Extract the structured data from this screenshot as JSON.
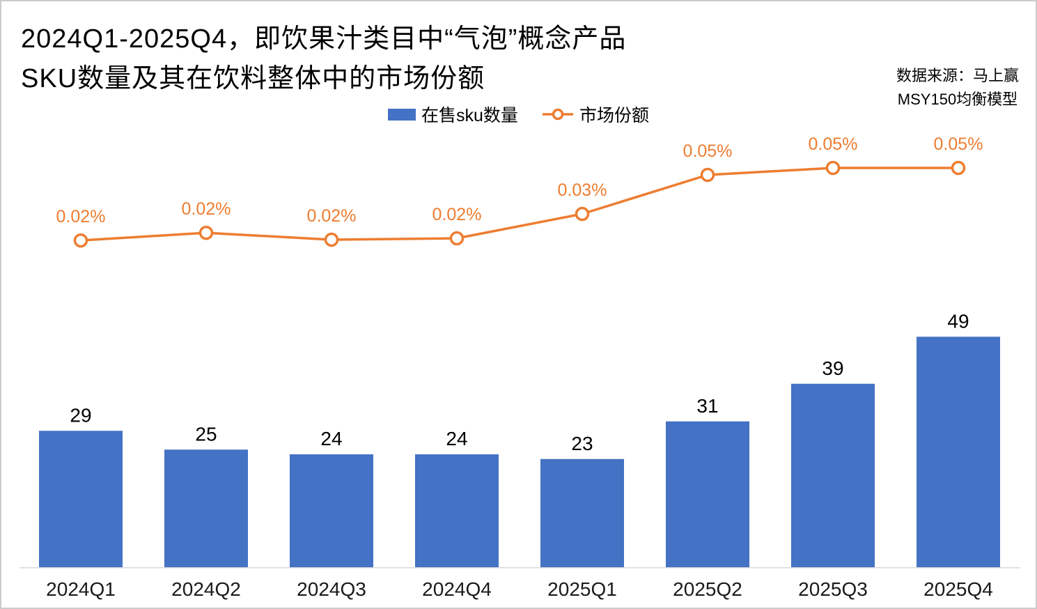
{
  "header": {
    "title_line1": "2024Q1-2025Q4，即饮果汁类目中“气泡”概念产品",
    "title_line2": "SKU数量及其在饮料整体中的市场份额",
    "source_line1": "数据来源：马上赢",
    "source_line2": "MSY150均衡模型"
  },
  "legend": {
    "bar_label": "在售sku数量",
    "line_label": "市场份额"
  },
  "colors": {
    "bar": "#4472C4",
    "line": "#ED7D31",
    "line_label_text": "#ED7D31",
    "value_label_text": "#000000",
    "axis_label_text": "#1a1a1a",
    "axis_line": "#D9D9D9",
    "marker_fill": "#FFFFFF"
  },
  "chart_data": {
    "type": "bar+line-combo",
    "title": "2024Q1-2025Q4，即饮果汁类目中“气泡”概念产品SKU数量及其在饮料整体中的市场份额",
    "categories": [
      "2024Q1",
      "2024Q2",
      "2024Q3",
      "2024Q4",
      "2025Q1",
      "2025Q2",
      "2025Q3",
      "2025Q4"
    ],
    "series": [
      {
        "name": "在售sku数量",
        "type": "bar",
        "values": [
          29,
          25,
          24,
          24,
          23,
          31,
          39,
          49
        ]
      },
      {
        "name": "市场份额",
        "type": "line",
        "labels": [
          "0.02%",
          "0.02%",
          "0.02%",
          "0.02%",
          "0.03%",
          "0.05%",
          "0.05%",
          "0.05%"
        ],
        "values_pct": [
          0.02,
          0.02,
          0.02,
          0.02,
          0.03,
          0.05,
          0.05,
          0.05
        ],
        "values_pct_est": [
          0.0197,
          0.0229,
          0.02,
          0.0206,
          0.0308,
          0.0471,
          0.05,
          0.05
        ]
      }
    ],
    "grid": false,
    "y_axis_visible": false,
    "legend_position": "top-center",
    "source_note": "数据来源：马上赢 MSY150均衡模型"
  }
}
